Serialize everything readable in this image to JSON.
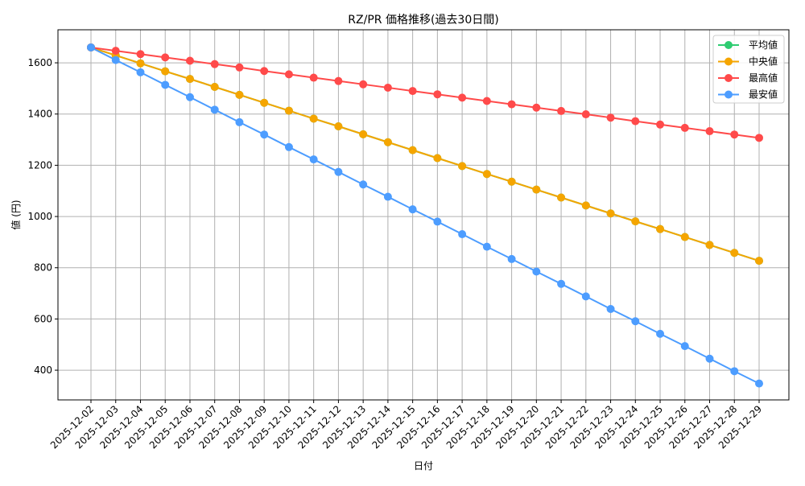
{
  "chart_data": {
    "type": "line",
    "title": "RZ/PR 価格推移(過去30日間)",
    "xlabel": "日付",
    "ylabel": "値 (円)",
    "ylim": [
      284,
      1729
    ],
    "yticks": [
      400,
      600,
      800,
      1000,
      1200,
      1400,
      1600
    ],
    "grid": true,
    "legend_position": "top-right",
    "x": [
      "2025-12-02",
      "2025-12-03",
      "2025-12-04",
      "2025-12-05",
      "2025-12-06",
      "2025-12-07",
      "2025-12-08",
      "2025-12-09",
      "2025-12-10",
      "2025-12-11",
      "2025-12-12",
      "2025-12-13",
      "2025-12-14",
      "2025-12-15",
      "2025-12-16",
      "2025-12-17",
      "2025-12-18",
      "2025-12-19",
      "2025-12-20",
      "2025-12-21",
      "2025-12-22",
      "2025-12-23",
      "2025-12-24",
      "2025-12-25",
      "2025-12-26",
      "2025-12-27",
      "2025-12-28",
      "2025-12-29"
    ],
    "series": [
      {
        "name": "平均値",
        "color": "#2ecc71",
        "values": [
          1660,
          1629,
          1598,
          1567,
          1537,
          1506,
          1475,
          1444,
          1413,
          1382,
          1352,
          1321,
          1290,
          1259,
          1228,
          1197,
          1166,
          1136,
          1105,
          1074,
          1043,
          1012,
          981,
          951,
          920,
          889,
          858,
          827
        ]
      },
      {
        "name": "中央値",
        "color": "#f5a500",
        "values": [
          1660,
          1629,
          1598,
          1567,
          1537,
          1506,
          1475,
          1444,
          1413,
          1382,
          1352,
          1321,
          1290,
          1259,
          1228,
          1197,
          1166,
          1136,
          1105,
          1074,
          1043,
          1012,
          981,
          951,
          920,
          889,
          858,
          827
        ]
      },
      {
        "name": "最高値",
        "color": "#ff4a4a",
        "values": [
          1660,
          1647,
          1634,
          1621,
          1608,
          1595,
          1582,
          1568,
          1555,
          1542,
          1529,
          1516,
          1503,
          1490,
          1477,
          1464,
          1451,
          1438,
          1425,
          1412,
          1399,
          1386,
          1372,
          1359,
          1346,
          1333,
          1320,
          1307
        ]
      },
      {
        "name": "最安値",
        "color": "#4d9dff",
        "values": [
          1660,
          1611,
          1563,
          1514,
          1466,
          1417,
          1368,
          1320,
          1271,
          1223,
          1174,
          1125,
          1077,
          1028,
          980,
          931,
          882,
          834,
          785,
          737,
          688,
          639,
          591,
          542,
          494,
          445,
          396,
          348
        ]
      }
    ]
  }
}
